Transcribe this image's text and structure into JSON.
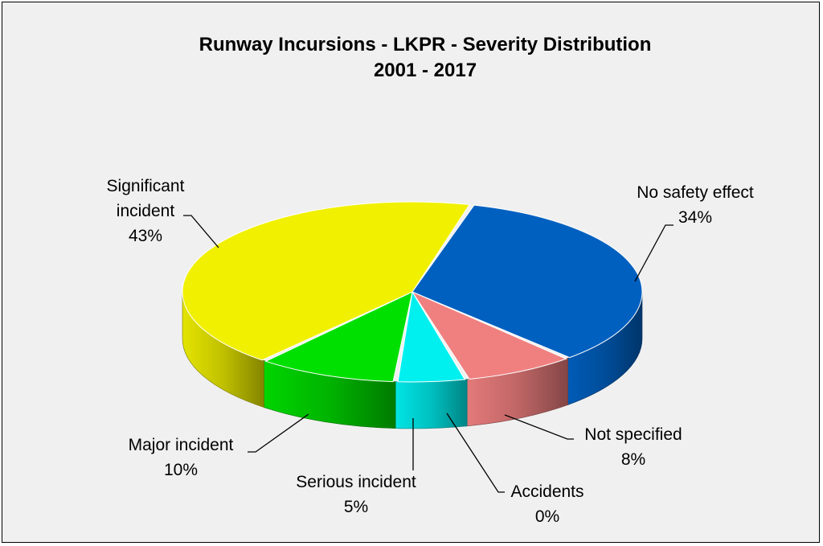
{
  "chart_data": {
    "type": "pie",
    "title": [
      "Runway Incursions -  LKPR  -  Severity Distribution",
      "2001 - 2017"
    ],
    "slices": [
      {
        "label": [
          "No safety effect"
        ],
        "value": 34,
        "pct_label": "34%",
        "color": "#0060C0"
      },
      {
        "label": [
          "Not specified"
        ],
        "value": 8,
        "pct_label": "8%",
        "color": "#F08080"
      },
      {
        "label": [
          "Accidents"
        ],
        "value": 0,
        "pct_label": "0%",
        "color": "#1F2F6F"
      },
      {
        "label": [
          "Serious incident"
        ],
        "value": 5,
        "pct_label": "5%",
        "color": "#00F0F0"
      },
      {
        "label": [
          "Major incident"
        ],
        "value": 10,
        "pct_label": "10%",
        "color": "#00E000"
      },
      {
        "label": [
          "Significant",
          "incident"
        ],
        "value": 43,
        "pct_label": "43%",
        "color": "#F0F000"
      }
    ],
    "style": "3d-exploded-pie",
    "legend": "none",
    "data_labels": "outside-with-leader-lines"
  }
}
